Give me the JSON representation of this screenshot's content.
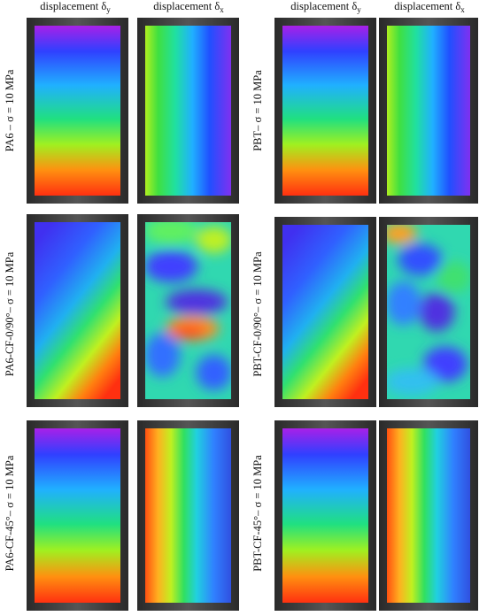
{
  "column_headers": [
    {
      "text": "displacement δ",
      "subscript": "y"
    },
    {
      "text": "displacement δ",
      "subscript": "x"
    },
    {
      "text": "displacement δ",
      "subscript": "y"
    },
    {
      "text": "displacement δ",
      "subscript": "x"
    }
  ],
  "row_labels": {
    "left": [
      "PA6 – σ = 10 MPa",
      "PA6-CF-0/90°– σ = 10 MPa",
      "PA6-CF-45°– σ = 10 MPa"
    ],
    "right": [
      "PBT– σ = 10 MPa",
      "PBT-CF-0/90°– σ = 10 MPa",
      "PBT-CF-45°– σ = 10 MPa"
    ]
  }
}
